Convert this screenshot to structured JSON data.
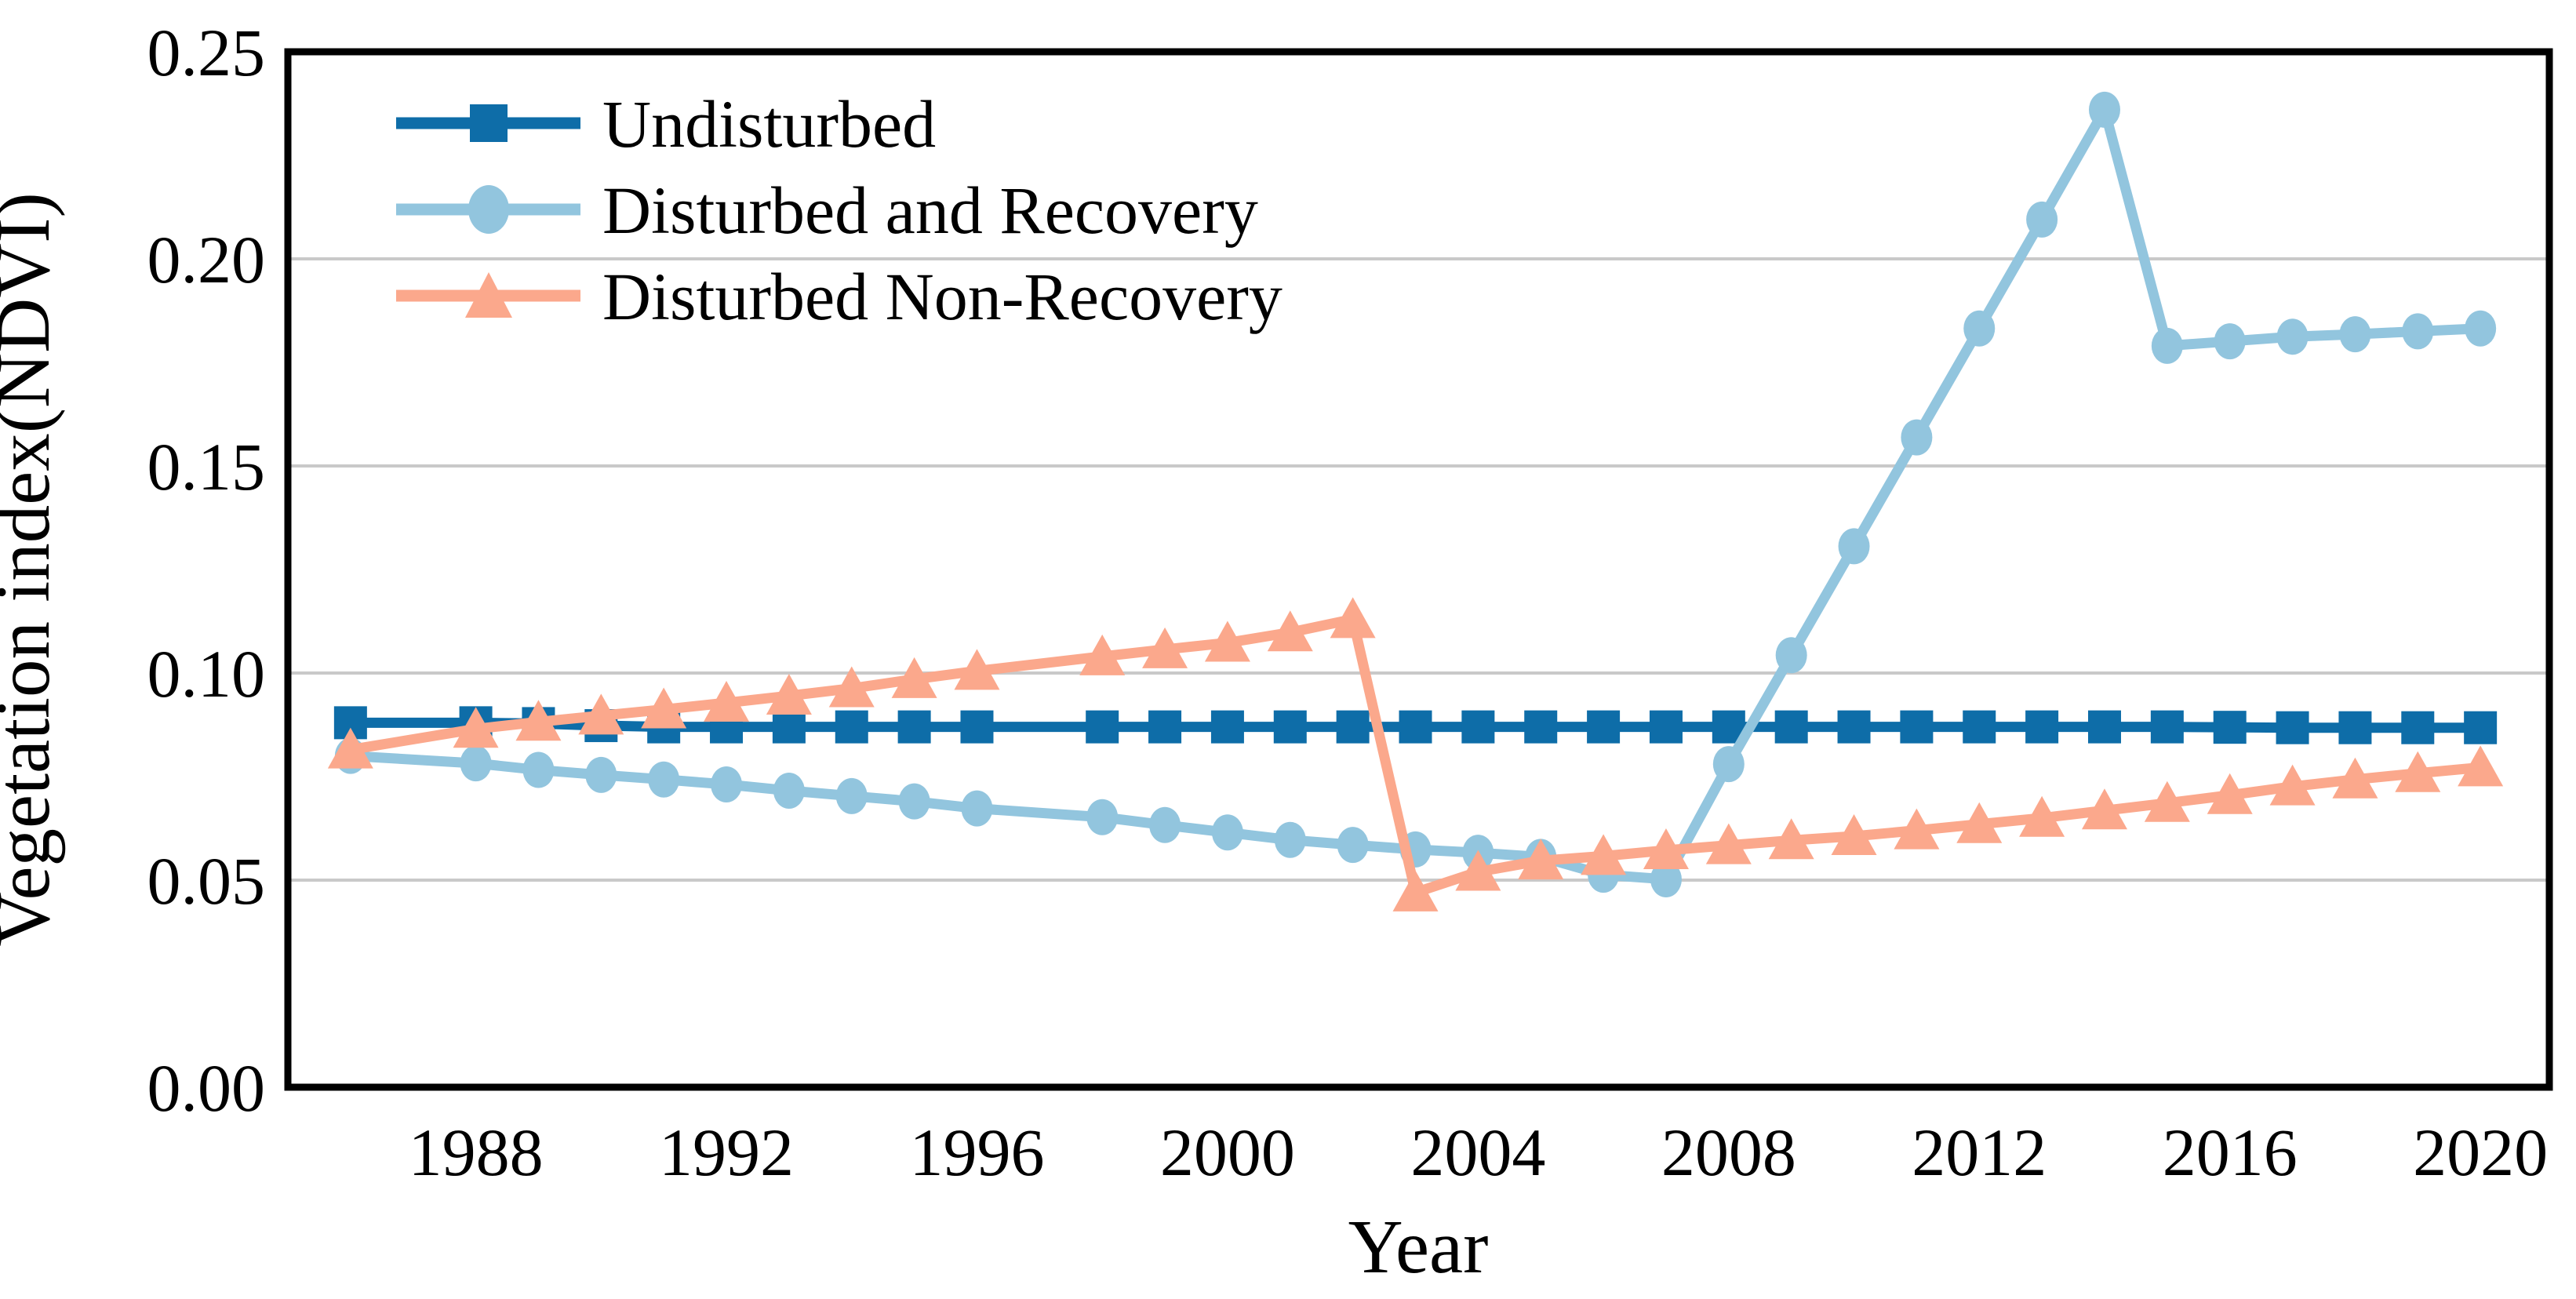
{
  "chart_data": {
    "type": "line",
    "title": "",
    "xlabel": "Year",
    "ylabel": "Vegetation index(NDVI)",
    "grid": "horizontal",
    "legend_position": "top-left-inside",
    "xlim": [
      1985,
      2021.1
    ],
    "ylim": [
      0,
      0.25
    ],
    "x_tick_labels": [
      "1988",
      "1992",
      "1996",
      "2000",
      "2004",
      "2008",
      "2012",
      "2016",
      "2020"
    ],
    "x_tick_values": [
      1988,
      1992,
      1996,
      2000,
      2004,
      2008,
      2012,
      2016,
      2020
    ],
    "y_tick_labels": [
      "0.00",
      "0.05",
      "0.10",
      "0.15",
      "0.20",
      "0.25"
    ],
    "y_tick_values": [
      0.0,
      0.05,
      0.1,
      0.15,
      0.2,
      0.25
    ],
    "grid_values": [
      0.05,
      0.1,
      0.15,
      0.2
    ],
    "x": [
      1986,
      1988,
      1989,
      1990,
      1991,
      1992,
      1993,
      1994,
      1995,
      1996,
      1998,
      1999,
      2000,
      2001,
      2002,
      2003,
      2004,
      2005,
      2006,
      2007,
      2008,
      2009,
      2010,
      2011,
      2012,
      2013,
      2014,
      2015,
      2016,
      2017,
      2018,
      2019,
      2020
    ],
    "series": [
      {
        "name": "Undisturbed",
        "marker": "square",
        "color": "#0E6DA8",
        "values": [
          0.088,
          0.088,
          0.0878,
          0.0873,
          0.087,
          0.087,
          0.087,
          0.087,
          0.087,
          0.087,
          0.087,
          0.087,
          0.087,
          0.087,
          0.087,
          0.087,
          0.087,
          0.087,
          0.087,
          0.087,
          0.087,
          0.087,
          0.087,
          0.087,
          0.087,
          0.087,
          0.087,
          0.087,
          0.0869,
          0.0868,
          0.0868,
          0.0868,
          0.0868
        ]
      },
      {
        "name": "Disturbed and Recovery",
        "marker": "circle",
        "color": "#92C5DE",
        "values": [
          0.08,
          0.0782,
          0.0766,
          0.0754,
          0.0743,
          0.0731,
          0.0716,
          0.0703,
          0.069,
          0.0673,
          0.0652,
          0.0633,
          0.0615,
          0.0597,
          0.0585,
          0.0574,
          0.0566,
          0.0556,
          0.0513,
          0.0502,
          0.078,
          0.1043,
          0.1306,
          0.1569,
          0.1832,
          0.2095,
          0.236,
          0.179,
          0.1801,
          0.1812,
          0.1818,
          0.1825,
          0.1832
        ]
      },
      {
        "name": "Disturbed Non-Recovery",
        "marker": "triangle",
        "color": "#FBA88C",
        "values": [
          0.0815,
          0.0865,
          0.0882,
          0.0897,
          0.0912,
          0.0928,
          0.0945,
          0.0963,
          0.0985,
          0.1005,
          0.104,
          0.1057,
          0.1073,
          0.1098,
          0.113,
          0.047,
          0.052,
          0.0547,
          0.0558,
          0.0572,
          0.0584,
          0.0596,
          0.0606,
          0.062,
          0.0635,
          0.065,
          0.0668,
          0.0686,
          0.0705,
          0.0726,
          0.0743,
          0.0758,
          0.0772
        ]
      }
    ],
    "styles": {
      "grid_color": "#C9C9C9",
      "spine_color": "#000000",
      "background": "#FFFFFF"
    }
  }
}
